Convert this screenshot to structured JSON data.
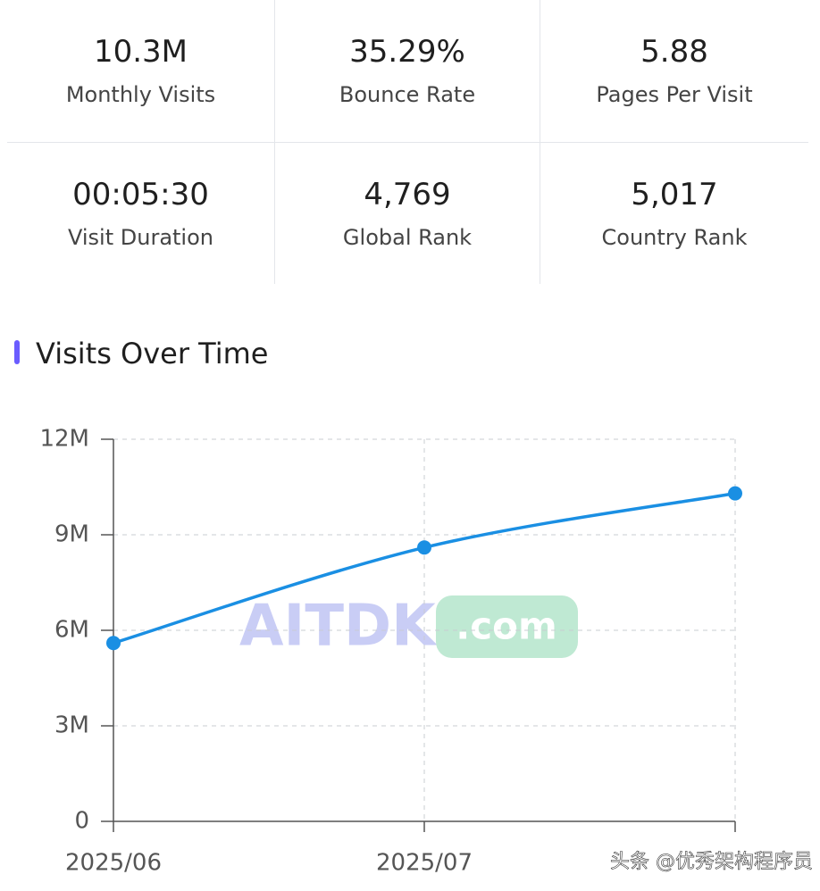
{
  "stats": [
    {
      "value": "10.3M",
      "label": "Monthly Visits"
    },
    {
      "value": "35.29%",
      "label": "Bounce Rate"
    },
    {
      "value": "5.88",
      "label": "Pages Per Visit"
    },
    {
      "value": "00:05:30",
      "label": "Visit Duration"
    },
    {
      "value": "4,769",
      "label": "Global Rank"
    },
    {
      "value": "5,017",
      "label": "Country Rank"
    }
  ],
  "section_title": "Visits Over Time",
  "chart_data": {
    "type": "line",
    "categories": [
      "2025/06",
      "2025/07",
      null
    ],
    "series": [
      {
        "color": "#1a8fe3",
        "values": [
          5600000,
          8600000,
          10300000
        ]
      }
    ],
    "ylim": [
      0,
      12000000
    ],
    "yticks": [
      {
        "value": 0,
        "label": "0"
      },
      {
        "value": 3000000,
        "label": "3M"
      },
      {
        "value": 6000000,
        "label": "6M"
      },
      {
        "value": 9000000,
        "label": "9M"
      },
      {
        "value": 12000000,
        "label": "12M"
      }
    ],
    "grid": true
  },
  "watermarks": {
    "brand": "AITDK",
    "domain": ".com",
    "source": "头条 @优秀架构程序员"
  }
}
